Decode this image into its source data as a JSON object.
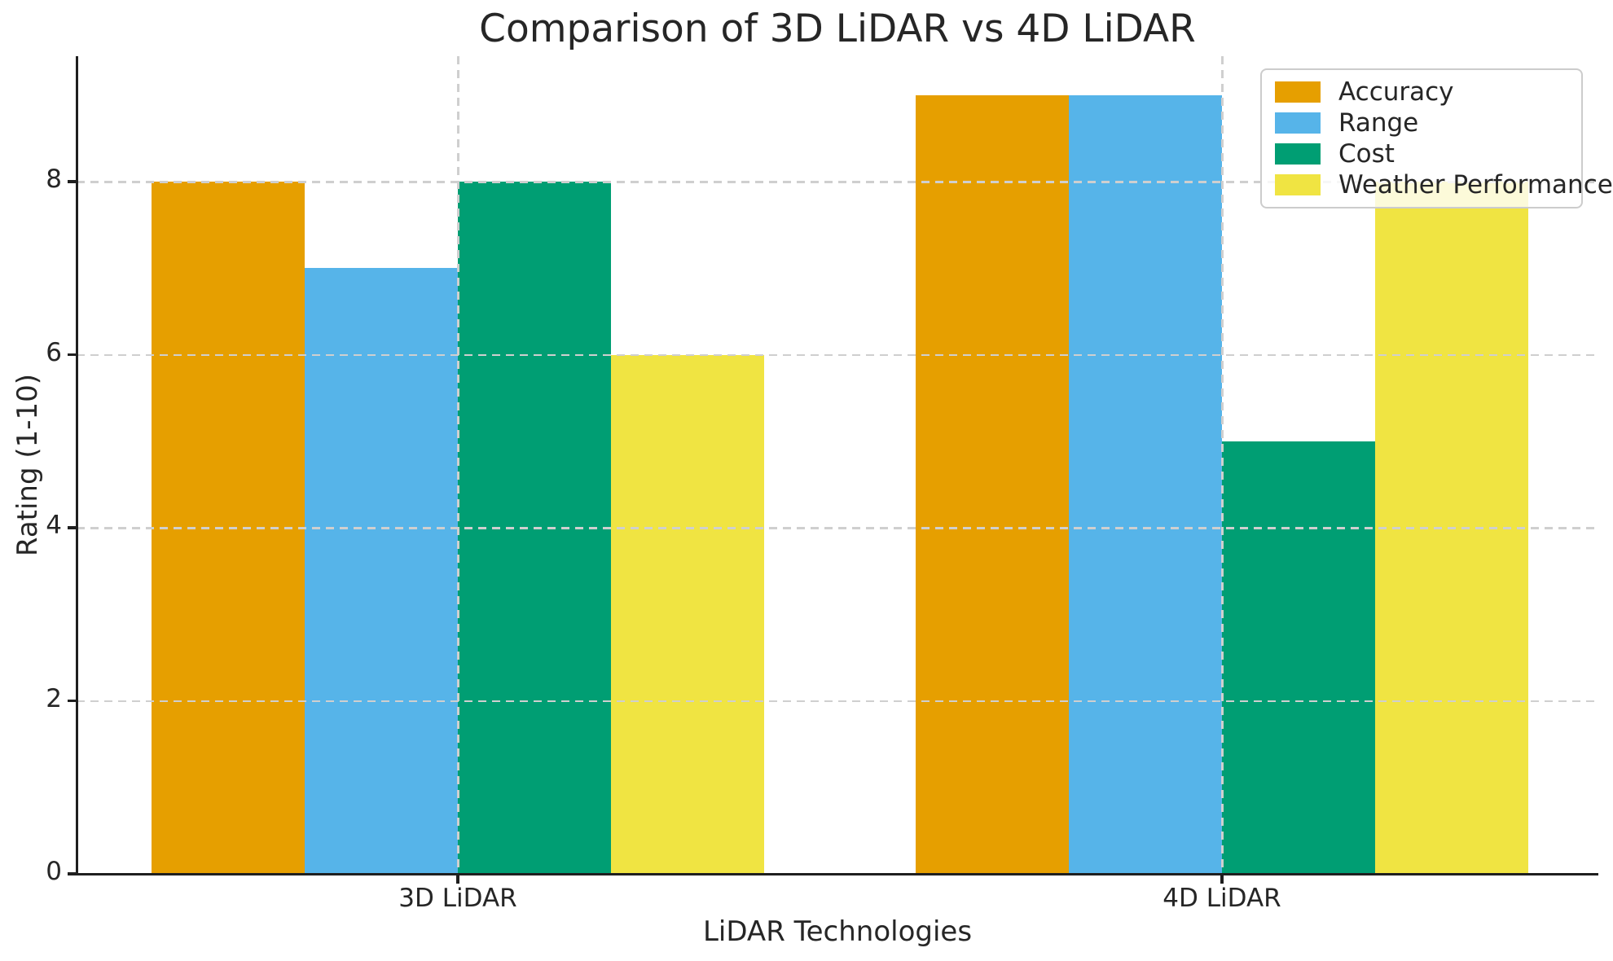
{
  "chart_data": {
    "type": "bar",
    "title": "Comparison of 3D LiDAR vs 4D LiDAR",
    "xlabel": "LiDAR Technologies",
    "ylabel": "Rating (1-10)",
    "categories": [
      "3D LiDAR",
      "4D LiDAR"
    ],
    "series": [
      {
        "name": "Accuracy",
        "color": "#E69F00",
        "values": [
          8,
          9
        ]
      },
      {
        "name": "Range",
        "color": "#56B4E9",
        "values": [
          7,
          9
        ]
      },
      {
        "name": "Cost",
        "color": "#009E73",
        "values": [
          8,
          5
        ]
      },
      {
        "name": "Weather Performance",
        "color": "#F0E442",
        "values": [
          6,
          8
        ]
      }
    ],
    "ylim": [
      0,
      9.45
    ],
    "yticks": [
      0,
      2,
      4,
      6,
      8
    ],
    "grid": "dashed gray, horizontal at yticks and vertical at category centers, drawn above bars",
    "legend_position": "upper right",
    "style": {
      "grid_color": "#cfcfcf",
      "spine_color": "#1f1f1f",
      "text_color": "#262626",
      "background": "#ffffff"
    }
  }
}
